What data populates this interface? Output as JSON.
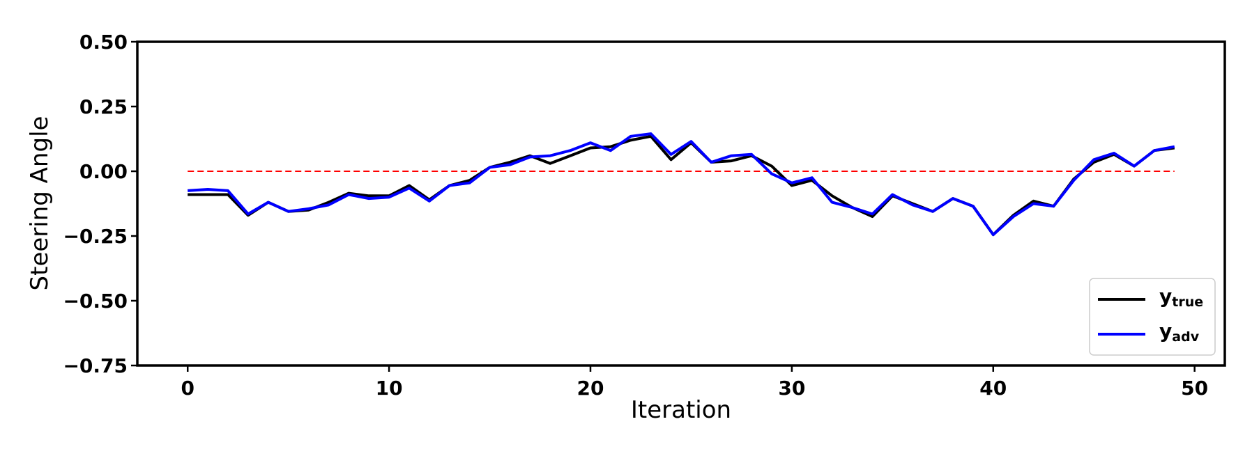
{
  "chart_data": {
    "type": "line",
    "title": "",
    "xlabel": "Iteration",
    "ylabel": "Steering Angle",
    "xlim": [
      -2.5,
      51.5
    ],
    "ylim": [
      -0.75,
      0.5
    ],
    "xticks": [
      0,
      10,
      20,
      30,
      40,
      50
    ],
    "xtick_labels": [
      "0",
      "10",
      "20",
      "30",
      "40",
      "50"
    ],
    "yticks": [
      0.5,
      0.25,
      0.0,
      -0.25,
      -0.5,
      -0.75
    ],
    "ytick_labels": [
      "0.50",
      "0.25",
      "0.00",
      "−0.25",
      "−0.50",
      "−0.75"
    ],
    "grid": false,
    "legend_position": "bottom-right",
    "x": [
      0,
      1,
      2,
      3,
      4,
      5,
      6,
      7,
      8,
      9,
      10,
      11,
      12,
      13,
      14,
      15,
      16,
      17,
      18,
      19,
      20,
      21,
      22,
      23,
      24,
      25,
      26,
      27,
      28,
      29,
      30,
      31,
      32,
      33,
      34,
      35,
      36,
      37,
      38,
      39,
      40,
      41,
      42,
      43,
      44,
      45,
      46,
      47,
      48,
      49
    ],
    "series": [
      {
        "legend_main": "y",
        "legend_sub": "true",
        "color": "#000000",
        "values": [
          -0.09,
          -0.09,
          -0.09,
          -0.17,
          -0.12,
          -0.155,
          -0.15,
          -0.12,
          -0.085,
          -0.095,
          -0.095,
          -0.055,
          -0.11,
          -0.055,
          -0.035,
          0.015,
          0.035,
          0.06,
          0.03,
          0.06,
          0.09,
          0.095,
          0.12,
          0.135,
          0.045,
          0.11,
          0.035,
          0.04,
          0.06,
          0.02,
          -0.055,
          -0.035,
          -0.095,
          -0.14,
          -0.175,
          -0.095,
          -0.125,
          -0.155,
          -0.105,
          -0.135,
          -0.245,
          -0.17,
          -0.115,
          -0.135,
          -0.03,
          0.035,
          0.065,
          0.02,
          0.08,
          0.09
        ]
      },
      {
        "legend_main": "y",
        "legend_sub": "adv",
        "color": "#0000ff",
        "values": [
          -0.075,
          -0.07,
          -0.075,
          -0.165,
          -0.12,
          -0.155,
          -0.145,
          -0.13,
          -0.09,
          -0.105,
          -0.1,
          -0.065,
          -0.115,
          -0.055,
          -0.045,
          0.015,
          0.025,
          0.055,
          0.06,
          0.08,
          0.11,
          0.08,
          0.135,
          0.145,
          0.065,
          0.115,
          0.035,
          0.06,
          0.065,
          -0.01,
          -0.045,
          -0.025,
          -0.12,
          -0.14,
          -0.165,
          -0.09,
          -0.13,
          -0.155,
          -0.105,
          -0.135,
          -0.245,
          -0.175,
          -0.125,
          -0.135,
          -0.035,
          0.045,
          0.07,
          0.02,
          0.08,
          0.095
        ]
      }
    ],
    "reference_line": {
      "y": 0.0,
      "x_range": [
        0,
        49
      ],
      "color": "#ff0000",
      "style": "dashed"
    }
  }
}
